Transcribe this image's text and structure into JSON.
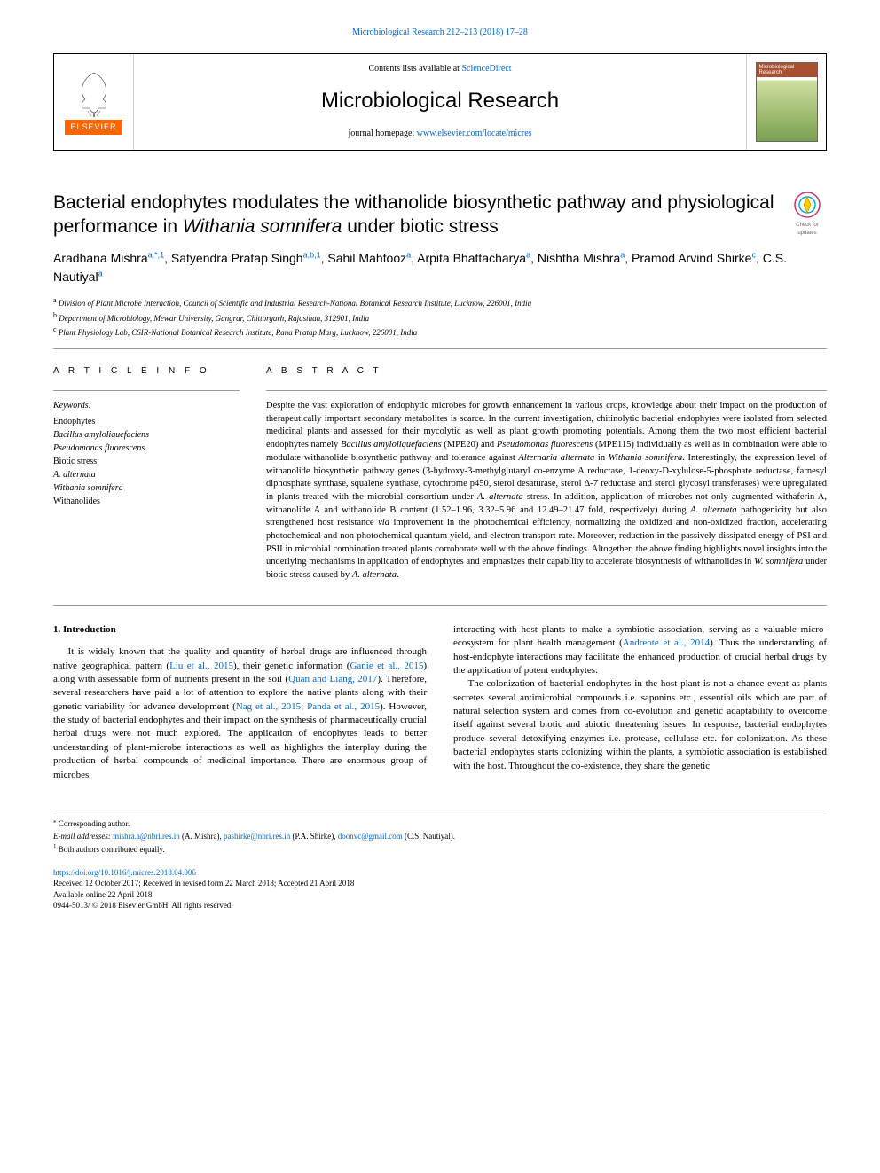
{
  "top_citation": "Microbiological Research 212–213 (2018) 17–28",
  "header": {
    "elsevier_label": "ELSEVIER",
    "contents_prefix": "Contents lists available at ",
    "contents_link": "ScienceDirect",
    "journal_name": "Microbiological Research",
    "homepage_prefix": "journal homepage: ",
    "homepage_link": "www.elsevier.com/locate/micres",
    "cover_text": "Microbiological\nResearch"
  },
  "check_updates_label": "Check for updates",
  "title_parts": {
    "p1": "Bacterial endophytes modulates the withanolide biosynthetic pathway and physiological performance in ",
    "p2_italic": "Withania somnifera",
    "p3": " under biotic stress"
  },
  "authors_html": "Aradhana Mishra<sup>a,*,1</sup>, Satyendra Pratap Singh<sup>a,b,1</sup>, Sahil Mahfooz<sup>a</sup>, Arpita Bhattacharya<sup>a</sup>, Nishtha Mishra<sup>a</sup>, Pramod Arvind Shirke<sup>c</sup>, C.S. Nautiyal<sup>a</sup>",
  "affiliations": [
    {
      "sup": "a",
      "text": "Division of Plant Microbe Interaction, Council of Scientific and Industrial Research-National Botanical Research Institute, Lucknow, 226001, India"
    },
    {
      "sup": "b",
      "text": "Department of Microbiology, Mewar University, Gangrar, Chittorgarh, Rajasthan, 312901, India"
    },
    {
      "sup": "c",
      "text": "Plant Physiology Lab, CSIR-National Botanical Research Institute, Rana Pratap Marg, Lucknow, 226001, India"
    }
  ],
  "article_info_heading": "A R T I C L E  I N F O",
  "abstract_heading": "A B S T R A C T",
  "keywords_label": "Keywords:",
  "keywords": [
    {
      "text": "Endophytes",
      "italic": false
    },
    {
      "text": "Bacillus amyloliquefaciens",
      "italic": true
    },
    {
      "text": "Pseudomonas fluorescens",
      "italic": true
    },
    {
      "text": "Biotic stress",
      "italic": false
    },
    {
      "text": "A. alternata",
      "italic": true
    },
    {
      "text": "Withania somnifera",
      "italic": true
    },
    {
      "text": "Withanolides",
      "italic": false
    }
  ],
  "abstract_text": "Despite the vast exploration of endophytic microbes for growth enhancement in various crops, knowledge about their impact on the production of therapeutically important secondary metabolites is scarce. In the current investigation, chitinolytic bacterial endophytes were isolated from selected medicinal plants and assessed for their mycolytic as well as plant growth promoting potentials. Among them the two most efficient bacterial endophytes namely <span class=\"italic\">Bacillus amyloliquefaciens</span> (MPE20) and <span class=\"italic\">Pseudomonas fluorescens</span> (MPE115) individually as well as in combination were able to modulate withanolide biosynthetic pathway and tolerance against <span class=\"italic\">Alternaria alternata</span> in <span class=\"italic\">Withania somnifera</span>. Interestingly, the expression level of withanolide biosynthetic pathway genes (3-hydroxy-3-methylglutaryl co-enzyme A reductase, 1-deoxy-D-xylulose-5-phosphate reductase, farnesyl diphosphate synthase, squalene synthase, cytochrome p450, sterol desaturase, sterol Δ-7 reductase and sterol glycosyl transferases) were upregulated in plants treated with the microbial consortium under <span class=\"italic\">A. alternata</span> stress. In addition, application of microbes not only augmented withaferin A, withanolide A and withanolide B content (1.52–1.96, 3.32–5.96 and 12.49–21.47 fold, respectively) during <span class=\"italic\">A. alternata</span> pathogenicity but also strengthened host resistance <span class=\"italic\">via</span> improvement in the photochemical efficiency, normalizing the oxidized and non-oxidized fraction, accelerating photochemical and non-photochemical quantum yield, and electron transport rate. Moreover, reduction in the passively dissipated energy of PSI and PSII in microbial combination treated plants corroborate well with the above findings. Altogether, the above finding highlights novel insights into the underlying mechanisms in application of endophytes and emphasizes their capability to accelerate biosynthesis of withanolides in <span class=\"italic\">W. somnifera</span> under biotic stress caused by <span class=\"italic\">A. alternata</span>.",
  "intro_heading": "1. Introduction",
  "intro_p1": "It is widely known that the quality and quantity of herbal drugs are influenced through native geographical pattern (<span class=\"link\">Liu et al., 2015</span>), their genetic information (<span class=\"link\">Ganie et al., 2015</span>) along with assessable form of nutrients present in the soil (<span class=\"link\">Quan and Liang, 2017</span>). Therefore, several researchers have paid a lot of attention to explore the native plants along with their genetic variability for advance development (<span class=\"link\">Nag et al., 2015</span>; <span class=\"link\">Panda et al., 2015</span>). However, the study of bacterial endophytes and their impact on the synthesis of pharmaceutically crucial herbal drugs were not much explored. The application of endophytes leads to better understanding of plant-microbe interactions as well as highlights the interplay during the production of herbal compounds of medicinal importance. There are enormous group of microbes",
  "intro_p2": "interacting with host plants to make a symbiotic association, serving as a valuable micro-ecosystem for plant health management (<span class=\"link\">Andreote et al., 2014</span>). Thus the understanding of host-endophyte interactions may facilitate the enhanced production of crucial herbal drugs by the application of potent endophytes.",
  "intro_p3": "The colonization of bacterial endophytes in the host plant is not a chance event as plants secretes several antimicrobial compounds i.e. saponins etc., essential oils which are part of natural selection system and comes from co-evolution and genetic adaptability to overcome itself against several biotic and abiotic threatening issues. In response, bacterial endophytes produce several detoxifying enzymes i.e. protease, cellulase etc. for colonization. As these bacterial endophytes starts colonizing within the plants, a symbiotic association is established with the host. Throughout the co-existence, they share the genetic",
  "footnotes": {
    "corresponding": "Corresponding author.",
    "email_label": "E-mail addresses:",
    "emails": [
      {
        "addr": "mishra.a@nbri.res.in",
        "who": "(A. Mishra)"
      },
      {
        "addr": "pashirke@nbri.res.in",
        "who": "(P.A. Shirke)"
      },
      {
        "addr": "doonvc@gmail.com",
        "who": "(C.S. Nautiyal)."
      }
    ],
    "note1": "Both authors contributed equally."
  },
  "pub": {
    "doi": "https://doi.org/10.1016/j.micres.2018.04.006",
    "received": "Received 12 October 2017; Received in revised form 22 March 2018; Accepted 21 April 2018",
    "available": "Available online 22 April 2018",
    "copyright": "0944-5013/ © 2018 Elsevier GmbH. All rights reserved."
  },
  "colors": {
    "link": "#0066cc",
    "elsevier_orange": "#ff6600",
    "rule": "#999999",
    "text": "#000000"
  }
}
